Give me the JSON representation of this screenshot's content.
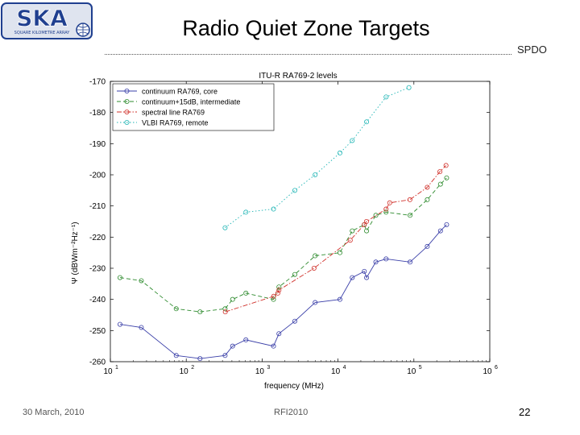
{
  "slide": {
    "title": "Radio Quiet Zone Targets",
    "org": "SPDO",
    "date": "30 March, 2010",
    "conference": "RFI2010",
    "page_number": "22"
  },
  "logo": {
    "text": "SKA",
    "subtext": "SQUARE KILOMETRE ARRAY"
  },
  "colors": {
    "logo_blue": "#1f3f8f",
    "continuum_core": "#3a3fa8",
    "continuum_intermediate": "#2e8b2e",
    "spectral_line": "#d0302a",
    "vlbi": "#1fb5b5"
  },
  "chart_data": {
    "type": "line",
    "title": "ITU-R RA769-2 levels",
    "xlabel": "frequency (MHz)",
    "ylabel": "Ψ (dBWm⁻²Hz⁻¹)",
    "x_scale": "log",
    "xlim": [
      10,
      1000000
    ],
    "ylim": [
      -260,
      -170
    ],
    "y_ticks": [
      -170,
      -180,
      -190,
      -200,
      -210,
      -220,
      -230,
      -240,
      -250,
      -260
    ],
    "y_tick_labels": [
      "-170",
      "-180",
      "-190",
      "-200",
      "-210",
      "-220",
      "-230",
      "-240",
      "-250",
      "-260"
    ],
    "x_ticks": [
      10,
      100,
      1000,
      10000,
      100000,
      1000000
    ],
    "x_tick_bases": [
      "10",
      "10",
      "10",
      "10",
      "10",
      "10"
    ],
    "x_tick_exps": [
      "1",
      "2",
      "3",
      "4",
      "5",
      "6"
    ],
    "grid": false,
    "legend_position": "top-left",
    "series": [
      {
        "name": "continuum RA769, core",
        "color": "#3a3fa8",
        "dash": "solid",
        "x": [
          13.4,
          25.6,
          73.8,
          152,
          325,
          408,
          611,
          1413,
          1665,
          2695,
          4995,
          10600,
          15400,
          22200,
          23800,
          31500,
          43000,
          89000,
          150000,
          224000,
          270000
        ],
        "y": [
          -248,
          -249,
          -258,
          -259,
          -258,
          -255,
          -253,
          -255,
          -251,
          -247,
          -241,
          -240,
          -233,
          -231,
          -233,
          -228,
          -227,
          -228,
          -223,
          -218,
          -216
        ]
      },
      {
        "name": "continuum+15dB, intermediate",
        "color": "#2e8b2e",
        "dash": "dashed",
        "x": [
          13.4,
          25.6,
          73.8,
          152,
          325,
          408,
          611,
          1413,
          1665,
          2695,
          4995,
          10600,
          15400,
          22200,
          23800,
          31500,
          43000,
          89000,
          150000,
          224000,
          270000
        ],
        "y": [
          -233,
          -234,
          -243,
          -244,
          -243,
          -240,
          -238,
          -240,
          -236,
          -232,
          -226,
          -225,
          -218,
          -216,
          -218,
          -213,
          -212,
          -213,
          -208,
          -203,
          -201
        ]
      },
      {
        "name": "spectral line RA769",
        "color": "#d0302a",
        "dash": "dashdot",
        "x": [
          327,
          1420,
          1612,
          1665,
          4830,
          14500,
          22200,
          23700,
          43000,
          48000,
          88600,
          150000,
          220000,
          265000
        ],
        "y": [
          -244,
          -239,
          -238,
          -237,
          -230,
          -221,
          -216,
          -215,
          -211,
          -209,
          -208,
          -204,
          -199,
          -197
        ]
      },
      {
        "name": "VLBI RA769, remote",
        "color": "#1fb5b5",
        "dash": "dotted",
        "x": [
          325,
          611,
          1413,
          2695,
          4995,
          10600,
          15400,
          23800,
          43000,
          86000
        ],
        "y": [
          -217,
          -212,
          -211,
          -205,
          -200,
          -193,
          -189,
          -183,
          -175,
          -172
        ]
      }
    ]
  }
}
